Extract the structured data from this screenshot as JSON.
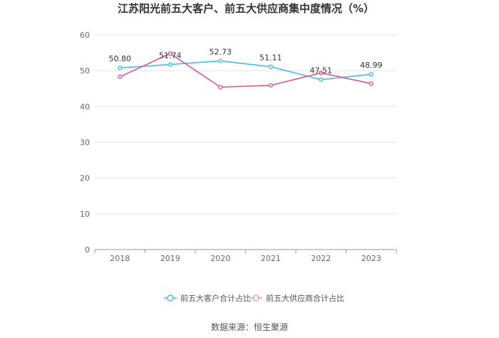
{
  "chart_data": {
    "type": "line",
    "title": "江苏阳光前五大客户、前五大供应商集中度情况（%）",
    "categories": [
      "2018",
      "2019",
      "2020",
      "2021",
      "2022",
      "2023"
    ],
    "ylim": [
      0,
      60
    ],
    "yticks": [
      0,
      10,
      20,
      30,
      40,
      50,
      60
    ],
    "grid": true,
    "legend_position": "bottom",
    "series": [
      {
        "name": "前五大客户合计占比",
        "color": "#4bb8ea",
        "values": [
          50.8,
          51.74,
          52.73,
          51.11,
          47.51,
          48.99
        ],
        "labels": [
          "50.80",
          "51.74",
          "52.73",
          "51.11",
          "47.51",
          "48.99"
        ]
      },
      {
        "name": "前五大供应商合计占比",
        "color": "#d9539f",
        "values": [
          48.3,
          54.8,
          45.4,
          45.9,
          49.4,
          46.4
        ]
      }
    ]
  },
  "source_note": "数据来源：恒生聚源"
}
